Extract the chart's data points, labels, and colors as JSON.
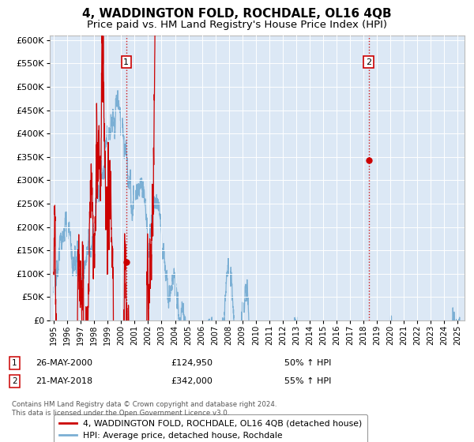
{
  "title": "4, WADDINGTON FOLD, ROCHDALE, OL16 4QB",
  "subtitle": "Price paid vs. HM Land Registry's House Price Index (HPI)",
  "title_fontsize": 11,
  "subtitle_fontsize": 9.5,
  "plot_bg_color": "#dce8f5",
  "fig_bg_color": "#ffffff",
  "red_line_color": "#cc0000",
  "blue_line_color": "#7bafd4",
  "grid_color": "#ffffff",
  "ylim": [
    0,
    610000
  ],
  "yticks": [
    0,
    50000,
    100000,
    150000,
    200000,
    250000,
    300000,
    350000,
    400000,
    450000,
    500000,
    550000,
    600000
  ],
  "marker1_date": 2000.38,
  "marker1_value": 124950,
  "marker1_label": "1",
  "marker1_date_str": "26-MAY-2000",
  "marker1_price": "£124,950",
  "marker1_hpi": "50% ↑ HPI",
  "marker2_date": 2018.38,
  "marker2_value": 342000,
  "marker2_label": "2",
  "marker2_date_str": "21-MAY-2018",
  "marker2_price": "£342,000",
  "marker2_hpi": "55% ↑ HPI",
  "legend_line1": "4, WADDINGTON FOLD, ROCHDALE, OL16 4QB (detached house)",
  "legend_line2": "HPI: Average price, detached house, Rochdale",
  "footnote": "Contains HM Land Registry data © Crown copyright and database right 2024.\nThis data is licensed under the Open Government Licence v3.0.",
  "xmin": 1994.7,
  "xmax": 2025.5
}
